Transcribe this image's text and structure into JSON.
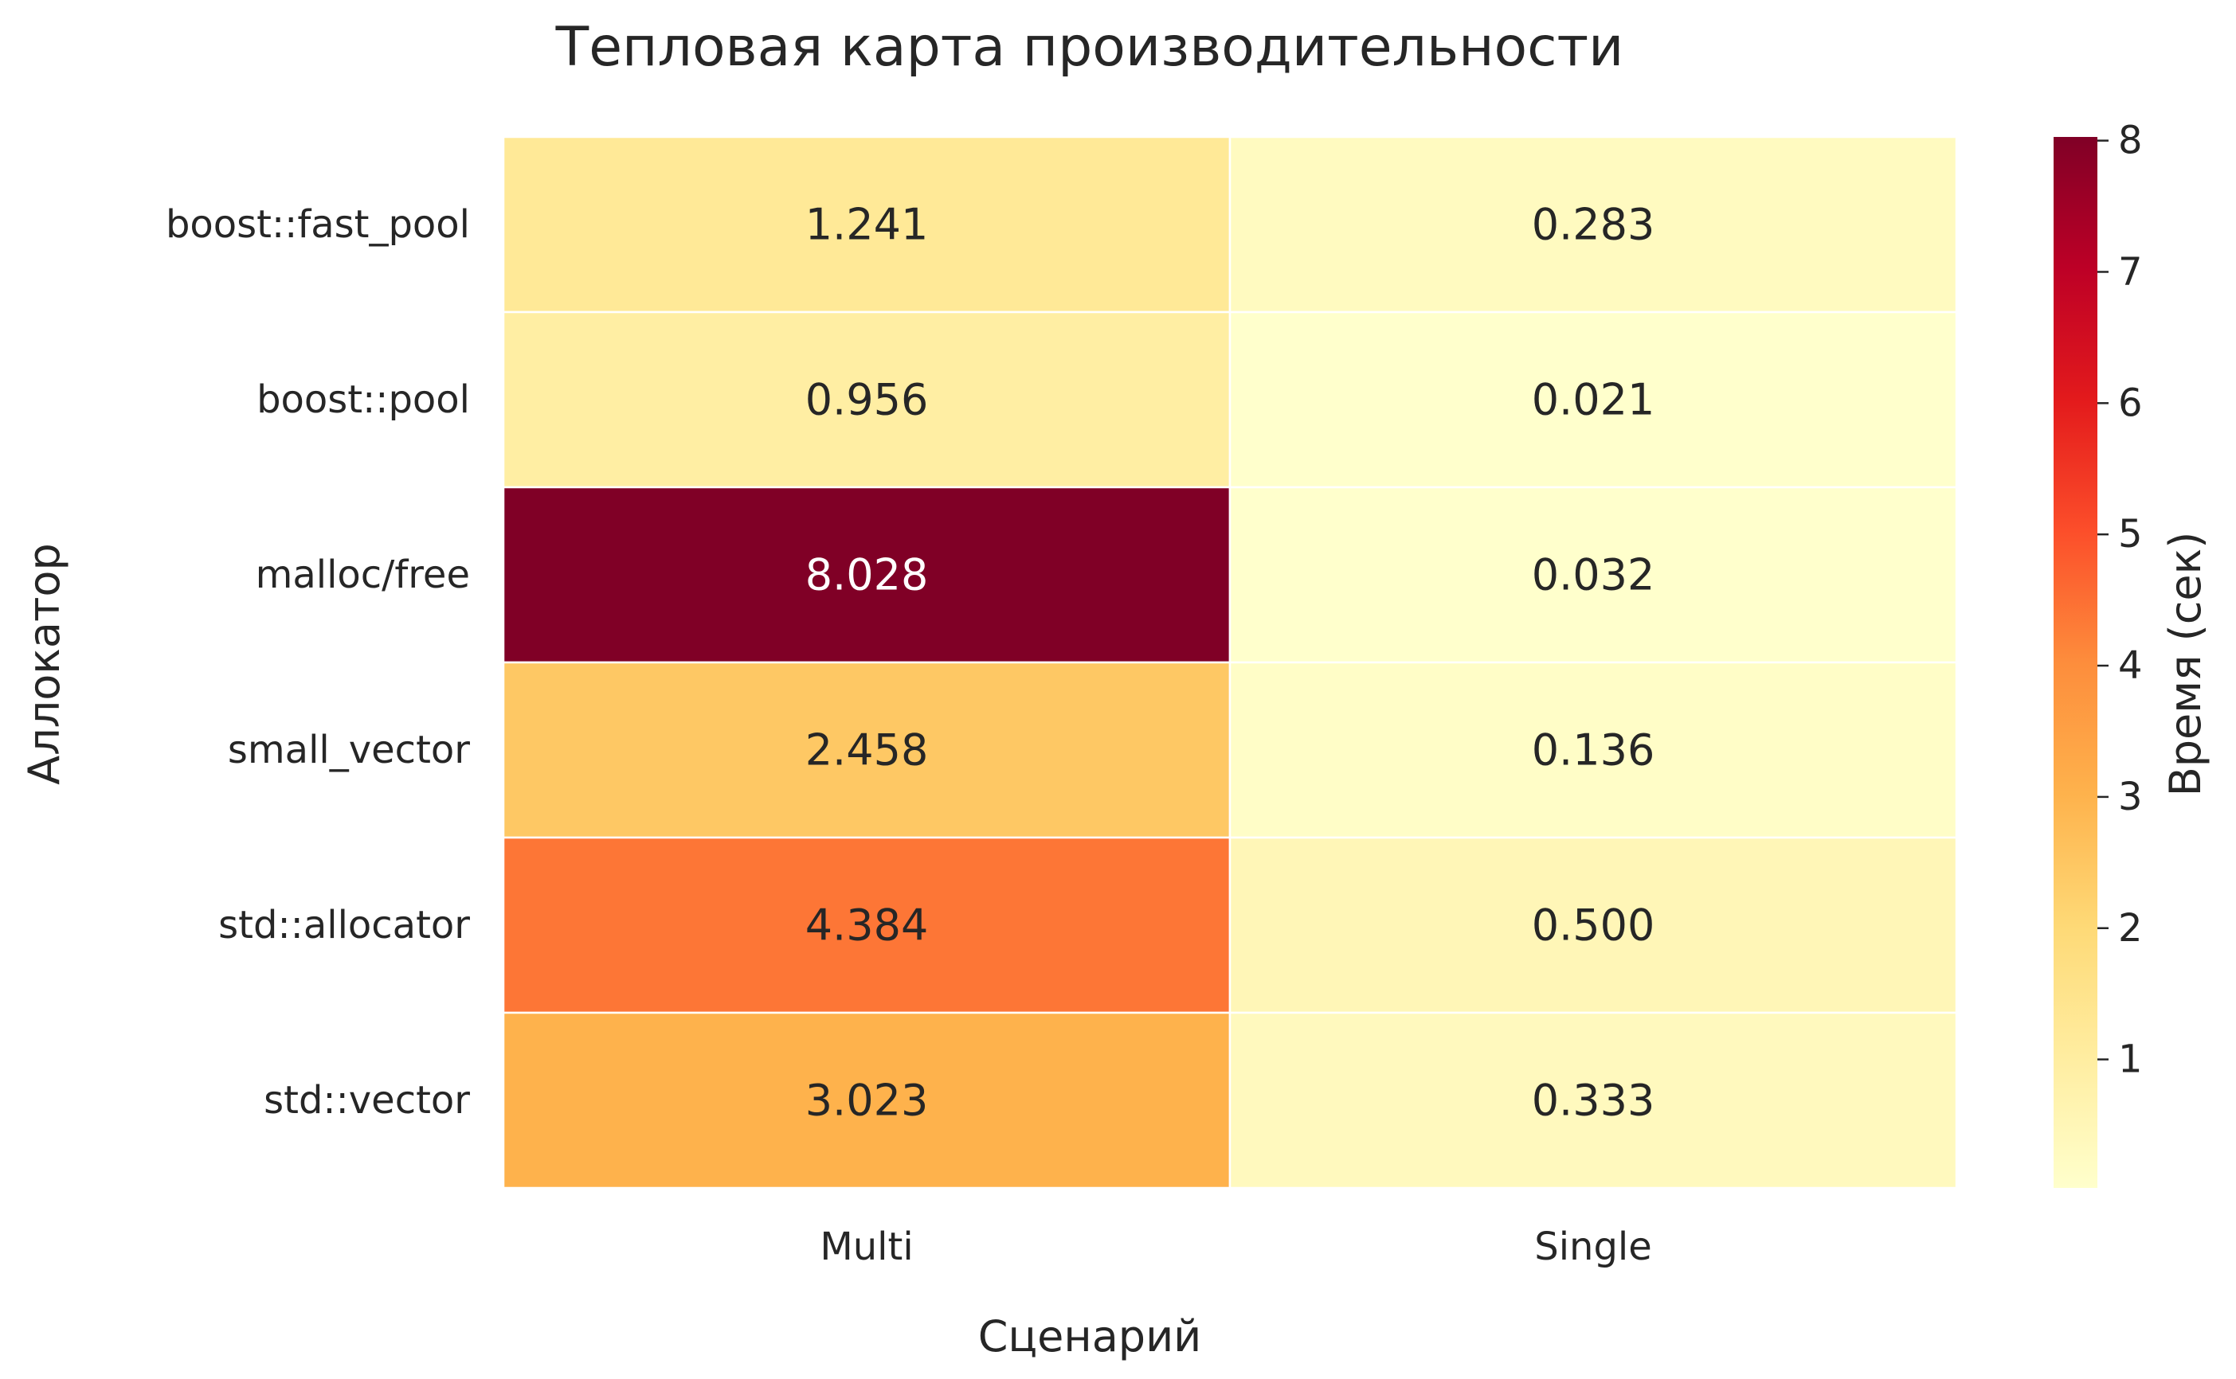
{
  "chart_data": {
    "type": "heatmap",
    "title": "Тепловая карта производительности",
    "xlabel": "Сценарий",
    "ylabel": "Аллокатор",
    "x_categories": [
      "Multi",
      "Single"
    ],
    "y_categories": [
      "boost::fast_pool",
      "boost::pool",
      "malloc/free",
      "small_vector",
      "std::allocator",
      "std::vector"
    ],
    "values": [
      [
        1.241,
        0.283
      ],
      [
        0.956,
        0.021
      ],
      [
        8.028,
        0.032
      ],
      [
        2.458,
        0.136
      ],
      [
        4.384,
        0.5
      ],
      [
        3.023,
        0.333
      ]
    ],
    "value_labels": [
      [
        "1.241",
        "0.283"
      ],
      [
        "0.956",
        "0.021"
      ],
      [
        "8.028",
        "0.032"
      ],
      [
        "2.458",
        "0.136"
      ],
      [
        "4.384",
        "0.500"
      ],
      [
        "3.023",
        "0.333"
      ]
    ],
    "colormap": "YlOrRd",
    "colorbar": {
      "label": "Время (сек)",
      "range": [
        0.021,
        8.028
      ],
      "ticks": [
        1,
        2,
        3,
        4,
        5,
        6,
        7,
        8
      ],
      "tick_labels": [
        "1",
        "2",
        "3",
        "4",
        "5",
        "6",
        "7",
        "8"
      ]
    },
    "grid": false,
    "colorbar_position": "right"
  }
}
